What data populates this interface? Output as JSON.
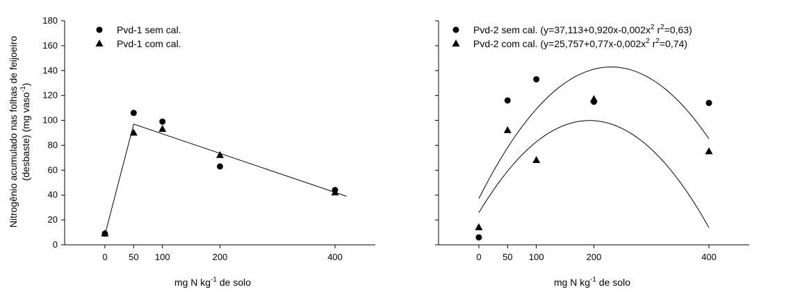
{
  "y_axis_title_line1": "Nitrogênio acumulado nas folhas de feijoeiro",
  "y_axis_title_line2": "(desbaste) (mg vaso",
  "y_axis_title_sup": "-1",
  "y_axis_title_close": ")",
  "chart_data": [
    {
      "type": "scatter",
      "xlabel": {
        "pre": "mg N kg",
        "sup": "-1",
        "post": " de solo"
      },
      "xticks": [
        0,
        50,
        100,
        200,
        400
      ],
      "yticks": [
        0,
        20,
        40,
        60,
        80,
        100,
        120,
        140,
        160,
        180
      ],
      "xlim": [
        -70,
        470
      ],
      "ylim": [
        0,
        180
      ],
      "legend_position": "top-left",
      "series": [
        {
          "name": "Pvd-1 sem cal.",
          "marker": "circle",
          "x": [
            0,
            50,
            100,
            200,
            400
          ],
          "y": [
            9,
            106,
            99,
            63,
            44
          ]
        },
        {
          "name": "Pvd-1 com cal.",
          "marker": "triangle",
          "x": [
            0,
            50,
            100,
            200,
            400
          ],
          "y": [
            9,
            90,
            93,
            72,
            42
          ]
        }
      ],
      "fit_line": {
        "type": "segmented",
        "points": [
          [
            0,
            8
          ],
          [
            50,
            97
          ],
          [
            420,
            39
          ]
        ]
      }
    },
    {
      "type": "scatter",
      "xlabel": {
        "pre": "mg N kg",
        "sup": "-1",
        "post": " de solo"
      },
      "xticks": [
        0,
        50,
        100,
        200,
        400
      ],
      "yticks": [
        0,
        20,
        40,
        60,
        80,
        100,
        120,
        140,
        160,
        180
      ],
      "xlim": [
        -70,
        470
      ],
      "ylim": [
        0,
        180
      ],
      "legend_position": "top-left",
      "series": [
        {
          "name": "Pvd-2 sem cal.",
          "equation": "(y=37,113+0,920x-0,002x",
          "equation_sup": "2",
          "r2_prefix": "  r",
          "r2_sup": "2",
          "r2_value": "=0,63)",
          "marker": "circle",
          "x": [
            0,
            50,
            100,
            200,
            400
          ],
          "y": [
            6,
            116,
            133,
            115,
            114
          ],
          "fit": {
            "a": 37.113,
            "b": 0.92,
            "c": -0.002
          }
        },
        {
          "name": "Pvd-2 com cal.",
          "equation": "(y=25,757+0,77x-0,002x",
          "equation_sup": "2",
          "r2_prefix": "  r",
          "r2_sup": "2",
          "r2_value": "=0,74)",
          "marker": "triangle",
          "x": [
            0,
            50,
            100,
            200,
            400
          ],
          "y": [
            14,
            92,
            68,
            117,
            75
          ],
          "fit": {
            "a": 25.757,
            "b": 0.77,
            "c": -0.002
          }
        }
      ]
    }
  ]
}
